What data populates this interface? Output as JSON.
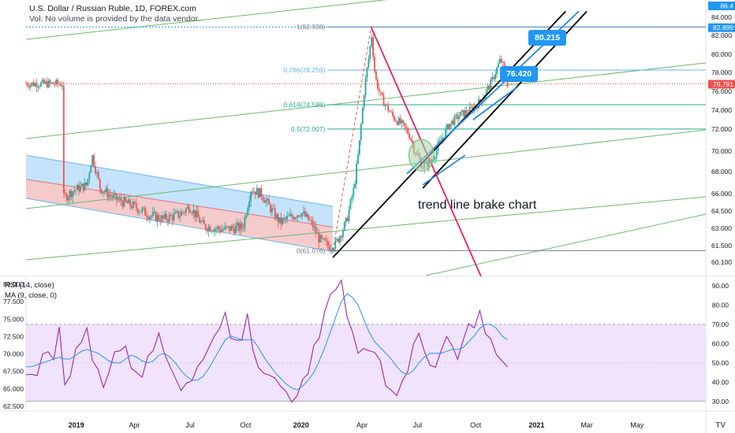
{
  "header": {
    "title": "U.S. Dollar / Russian Ruble, 1D, FOREX.com",
    "volume_note": "Vol: No volume is provided by the data vendor."
  },
  "indicator_legend": {
    "rsi": "RSI (14, close)",
    "ma": "MA (9, close, 0)"
  },
  "annotation_text": "trend line brake chart",
  "badges": [
    "80.215",
    "76.420"
  ],
  "logo_text": "TV",
  "colors": {
    "up": "#26a69a",
    "down": "#ef5350",
    "channel_blue": "#2196f3",
    "trend_green": "#4caf50",
    "rsi": "#9c27b0",
    "rsi_ma": "#2196f3",
    "rsi_band": "#e9d7f9",
    "fib_line": "#4caf50",
    "red_trend": "#e91e63"
  },
  "chart_data": [
    {
      "type": "candlestick",
      "title": "U.S. Dollar / Russian Ruble, 1D, FOREX.com",
      "currency_label": "RUB",
      "price_axis_ticks": [
        "84.000",
        "82.000",
        "80.000",
        "78.000",
        "76.000",
        "74.000",
        "72.000",
        "70.000",
        "68.000",
        "66.000",
        "64.500",
        "63.000",
        "61.500",
        "60.100"
      ],
      "price_axis_values": [
        84,
        82,
        80,
        78,
        76,
        74,
        72,
        70,
        68,
        66,
        64.5,
        63,
        61.5,
        60.1
      ],
      "x_ticks": [
        "2019",
        "Apr",
        "Jul",
        "Oct",
        "2020",
        "Apr",
        "Jul",
        "Oct",
        "2021",
        "Mar",
        "May"
      ],
      "last_price": "76.791",
      "price_labels": [
        "82.899",
        "86.4"
      ],
      "fib_levels": [
        {
          "label": "1(82.938)",
          "value": 82.938
        },
        {
          "label": "0.786(78.259)",
          "value": 78.259
        },
        {
          "label": "0.618(74.586)",
          "value": 74.586
        },
        {
          "label": "0.5(72.007)",
          "value": 72.007
        },
        {
          "label": "0(61.076)",
          "value": 61.076
        }
      ],
      "anchors": [
        {
          "t": 0.0,
          "p": 65.6
        },
        {
          "t": 0.04,
          "p": 66.3
        },
        {
          "t": 0.09,
          "p": 66.8
        },
        {
          "t": 0.11,
          "p": 69.6
        },
        {
          "t": 0.14,
          "p": 66.5
        },
        {
          "t": 0.2,
          "p": 65.5
        },
        {
          "t": 0.27,
          "p": 64.9
        },
        {
          "t": 0.33,
          "p": 64.1
        },
        {
          "t": 0.38,
          "p": 63.8
        },
        {
          "t": 0.44,
          "p": 64.2
        },
        {
          "t": 0.48,
          "p": 64.9
        },
        {
          "t": 0.53,
          "p": 63.2
        },
        {
          "t": 0.6,
          "p": 62.9
        },
        {
          "t": 0.68,
          "p": 63.1
        },
        {
          "t": 0.71,
          "p": 66.4
        },
        {
          "t": 0.75,
          "p": 66.0
        },
        {
          "t": 0.79,
          "p": 64.5
        },
        {
          "t": 0.82,
          "p": 63.5
        },
        {
          "t": 0.86,
          "p": 64.0
        },
        {
          "t": 0.9,
          "p": 64.4
        },
        {
          "t": 0.94,
          "p": 63.4
        },
        {
          "t": 0.97,
          "p": 62.0
        },
        {
          "t": 1.0,
          "p": 61.5
        },
        {
          "t": 1.03,
          "p": 61.6
        },
        {
          "t": 1.07,
          "p": 63.5
        },
        {
          "t": 1.1,
          "p": 66.5
        },
        {
          "t": 1.12,
          "p": 70.5
        },
        {
          "t": 1.14,
          "p": 76.5
        },
        {
          "t": 1.16,
          "p": 80.5
        },
        {
          "t": 1.165,
          "p": 82.5
        },
        {
          "t": 1.18,
          "p": 77.5
        },
        {
          "t": 1.2,
          "p": 75.5
        },
        {
          "t": 1.22,
          "p": 74.5
        },
        {
          "t": 1.25,
          "p": 73.2
        },
        {
          "t": 1.28,
          "p": 72.5
        },
        {
          "t": 1.31,
          "p": 71.5
        },
        {
          "t": 1.33,
          "p": 70.0
        },
        {
          "t": 1.36,
          "p": 68.5
        },
        {
          "t": 1.39,
          "p": 69.0
        },
        {
          "t": 1.42,
          "p": 70.5
        },
        {
          "t": 1.46,
          "p": 72.5
        },
        {
          "t": 1.5,
          "p": 73.5
        },
        {
          "t": 1.54,
          "p": 74.0
        },
        {
          "t": 1.58,
          "p": 75.0
        },
        {
          "t": 1.62,
          "p": 77.0
        },
        {
          "t": 1.655,
          "p": 79.5
        },
        {
          "t": 1.67,
          "p": 78.0
        },
        {
          "t": 1.68,
          "p": 76.8
        }
      ],
      "x_axis_times": [
        0.05,
        0.27,
        0.48,
        0.69,
        0.9,
        1.13,
        1.34,
        1.56,
        1.79,
        1.98,
        2.17
      ],
      "t_range": [
        -0.14,
        2.43
      ]
    },
    {
      "type": "line",
      "title": "RSI (14, close)",
      "series": [
        {
          "name": "RSI (14, close)",
          "values": [
            44,
            48,
            46,
            52,
            55,
            50,
            68,
            42,
            45,
            60,
            58,
            70,
            55,
            48,
            40,
            45,
            52,
            58,
            62,
            50,
            48,
            45,
            55,
            60,
            68,
            52,
            48,
            42,
            38,
            36,
            40,
            46,
            50,
            55,
            60,
            70,
            75,
            65,
            58,
            62,
            72,
            58,
            46,
            44,
            42,
            40,
            38,
            35,
            33,
            36,
            44,
            48,
            56,
            66,
            80,
            88,
            86,
            92,
            74,
            66,
            58,
            60,
            54,
            52,
            50,
            42,
            36,
            34,
            40,
            48,
            58,
            62,
            56,
            52,
            48,
            54,
            60,
            58,
            52,
            60,
            68,
            72,
            75,
            66,
            60,
            54,
            48,
            50
          ]
        },
        {
          "name": "MA (9, close, 0)",
          "values": [
            48,
            48,
            49,
            50,
            51,
            52,
            53,
            52,
            52,
            54,
            56,
            57,
            56,
            55,
            53,
            51,
            50,
            50,
            52,
            54,
            53,
            51,
            50,
            51,
            54,
            55,
            53,
            50,
            46,
            43,
            41,
            41,
            43,
            47,
            52,
            57,
            62,
            64,
            63,
            62,
            62,
            62,
            58,
            53,
            49,
            45,
            42,
            39,
            37,
            36,
            38,
            41,
            45,
            51,
            58,
            66,
            74,
            82,
            86,
            84,
            80,
            73,
            66,
            61,
            58,
            55,
            52,
            48,
            45,
            44,
            46,
            50,
            53,
            55,
            55,
            55,
            56,
            57,
            57,
            58,
            61,
            64,
            68,
            70,
            70,
            68,
            64,
            62
          ]
        }
      ],
      "right_ticks": [
        "90.00",
        "80.00",
        "70.00",
        "60.00",
        "50.00",
        "40.00",
        "30.00"
      ],
      "right_values": [
        90,
        80,
        70,
        60,
        50,
        40,
        30
      ],
      "left_ticks": [
        "80.000",
        "77.500",
        "75.000",
        "72.500",
        "70.000",
        "67.500",
        "65.000",
        "62.500"
      ],
      "band": [
        30,
        70
      ],
      "ylim": [
        25,
        95
      ]
    }
  ]
}
